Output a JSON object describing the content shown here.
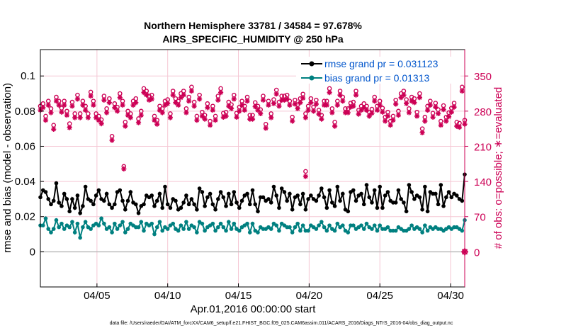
{
  "chart_data": {
    "type": "line",
    "title_line1": "Northern Hemisphere 33781 / 34584 = 97.678%",
    "title_line2": "AIRS_SPECIFIC_HUMIDITY @ 250 hPa",
    "xlabel": "Apr.01,2016 00:00:00 start",
    "ylabel_left": "rmse and bias (model - observation)",
    "ylabel_right": "# of obs: o=possible; ∗=evaluated",
    "footer": "data file: /Users/raeder/DAI/ATM_forcXX/CAM6_setup/f.e21.FHIST_BGC.f09_025.CAM6assim.011/ACARS_2016/Diags_NTrS_2016-04/obs_diag_output.nc",
    "x_ticks": [
      "04/05",
      "04/10",
      "04/15",
      "04/20",
      "04/25",
      "04/30"
    ],
    "x_tick_days": [
      5,
      10,
      15,
      20,
      25,
      30
    ],
    "xlim": [
      1,
      31
    ],
    "ylim_left": [
      -0.02,
      0.115
    ],
    "y_ticks_left": [
      "0",
      "0.02",
      "0.04",
      "0.06",
      "0.08",
      "0.1"
    ],
    "y_tick_values_left": [
      0,
      0.02,
      0.04,
      0.06,
      0.08,
      0.1
    ],
    "ylim_right": [
      -70,
      402.5
    ],
    "y_ticks_right": [
      "0",
      "70",
      "140",
      "210",
      "280",
      "350"
    ],
    "y_tick_values_right": [
      0,
      70,
      140,
      210,
      280,
      350
    ],
    "colors": {
      "rmse": "#000000",
      "bias": "#008080",
      "obs": "#cc0055",
      "legend_text": "#0055cc",
      "grid": "#f5c7d4",
      "zero": "#bbbbbb"
    },
    "series": [
      {
        "name": "rmse grand pr = 0.031123",
        "values": [
          0.031,
          0.035,
          0.034,
          0.03,
          0.027,
          0.029,
          0.039,
          0.028,
          0.026,
          0.033,
          0.03,
          0.023,
          0.03,
          0.025,
          0.032,
          0.022,
          0.026,
          0.037,
          0.03,
          0.029,
          0.027,
          0.032,
          0.035,
          0.03,
          0.029,
          0.033,
          0.027,
          0.025,
          0.027,
          0.034,
          0.035,
          0.029,
          0.024,
          0.029,
          0.034,
          0.028,
          0.027,
          0.022,
          0.026,
          0.027,
          0.032,
          0.031,
          0.032,
          0.026,
          0.029,
          0.033,
          0.025,
          0.037,
          0.027,
          0.025,
          0.03,
          0.029,
          0.024,
          0.025,
          0.028,
          0.032,
          0.027,
          0.03,
          0.027,
          0.024,
          0.036,
          0.034,
          0.026,
          0.031,
          0.033,
          0.027,
          0.024,
          0.03,
          0.034,
          0.031,
          0.026,
          0.033,
          0.027,
          0.034,
          0.028,
          0.025,
          0.029,
          0.032,
          0.033,
          0.027,
          0.035,
          0.027,
          0.023,
          0.031,
          0.031,
          0.029,
          0.03,
          0.028,
          0.037,
          0.032,
          0.025,
          0.036,
          0.034,
          0.029,
          0.033,
          0.024,
          0.031,
          0.032,
          0.027,
          0.033,
          0.024,
          0.03,
          0.032,
          0.03,
          0.029,
          0.032,
          0.036,
          0.031,
          0.025,
          0.035,
          0.028,
          0.026,
          0.037,
          0.029,
          0.033,
          0.024,
          0.023,
          0.034,
          0.035,
          0.029,
          0.032,
          0.033,
          0.027,
          0.038,
          0.031,
          0.028,
          0.035,
          0.025,
          0.037,
          0.025,
          0.032,
          0.034,
          0.029,
          0.028,
          0.028,
          0.035,
          0.03,
          0.028,
          0.023,
          0.038,
          0.034,
          0.03,
          0.032,
          0.031,
          0.024,
          0.037,
          0.023,
          0.034,
          0.033,
          0.033,
          0.027,
          0.038,
          0.026,
          0.031,
          0.034,
          0.031,
          0.033,
          0.032,
          0.03,
          0.029,
          0.044
        ]
      },
      {
        "name": "bias grand pr = 0.01313",
        "values": [
          0.015,
          0.015,
          0.019,
          0.013,
          0.011,
          0.013,
          0.018,
          0.014,
          0.016,
          0.013,
          0.015,
          0.014,
          0.017,
          0.011,
          0.016,
          0.008,
          0.014,
          0.017,
          0.014,
          0.013,
          0.015,
          0.016,
          0.015,
          0.019,
          0.016,
          0.013,
          0.014,
          0.011,
          0.016,
          0.013,
          0.015,
          0.017,
          0.011,
          0.013,
          0.016,
          0.015,
          0.014,
          0.014,
          0.017,
          0.012,
          0.016,
          0.015,
          0.016,
          0.01,
          0.014,
          0.017,
          0.012,
          0.014,
          0.013,
          0.015,
          0.016,
          0.013,
          0.012,
          0.015,
          0.013,
          0.017,
          0.013,
          0.015,
          0.014,
          0.011,
          0.017,
          0.016,
          0.012,
          0.014,
          0.015,
          0.016,
          0.012,
          0.014,
          0.016,
          0.014,
          0.012,
          0.017,
          0.013,
          0.016,
          0.013,
          0.012,
          0.014,
          0.015,
          0.016,
          0.011,
          0.016,
          0.012,
          0.011,
          0.014,
          0.013,
          0.013,
          0.014,
          0.013,
          0.016,
          0.015,
          0.012,
          0.016,
          0.015,
          0.014,
          0.014,
          0.011,
          0.014,
          0.016,
          0.012,
          0.015,
          0.012,
          0.012,
          0.015,
          0.014,
          0.013,
          0.015,
          0.017,
          0.014,
          0.012,
          0.015,
          0.013,
          0.012,
          0.016,
          0.014,
          0.015,
          0.012,
          0.011,
          0.015,
          0.015,
          0.013,
          0.014,
          0.015,
          0.013,
          0.016,
          0.014,
          0.013,
          0.015,
          0.012,
          0.015,
          0.013,
          0.013,
          0.014,
          0.012,
          0.012,
          0.012,
          0.014,
          0.013,
          0.012,
          0.012,
          0.013,
          0.015,
          0.013,
          0.014,
          0.013,
          0.011,
          0.015,
          0.012,
          0.014,
          0.013,
          0.014,
          0.013,
          0.013,
          0.012,
          0.013,
          0.014,
          0.013,
          0.014,
          0.014,
          0.013,
          0.012,
          0.018
        ]
      },
      {
        "name": "possible",
        "values": [
          290,
          295,
          270,
          300,
          285,
          252,
          308,
          300,
          286,
          300,
          280,
          255,
          298,
          275,
          312,
          275,
          300,
          290,
          275,
          318,
          300,
          275,
          270,
          263,
          310,
          285,
          305,
          230,
          295,
          288,
          315,
          300,
          258,
          280,
          275,
          300,
          305,
          265,
          280,
          325,
          320,
          310,
          312,
          270,
          262,
          290,
          285,
          300,
          303,
          275,
          320,
          305,
          300,
          315,
          320,
          285,
          308,
          328,
          298,
          270,
          312,
          278,
          272,
          295,
          260,
          290,
          270,
          310,
          325,
          276,
          278,
          298,
          293,
          312,
          276,
          288,
          300,
          290,
          308,
          272,
          272,
          297,
          290,
          283,
          310,
          254,
          300,
          275,
          303,
          322,
          298,
          310,
          310,
          312,
          300,
          268,
          302,
          293,
          305,
          314,
          275,
          290,
          305,
          288,
          302,
          282,
          272,
          300,
          300,
          325,
          285,
          258,
          300,
          320,
          308,
          285,
          285,
          296,
          298,
          320,
          282,
          290,
          295,
          290,
          278,
          284,
          308,
          290,
          300,
          286,
          268,
          278,
          260,
          270,
          302,
          280,
          315,
          320,
          303,
          285,
          308,
          305,
          278,
          315,
          245,
          268,
          290,
          300,
          276,
          296,
          283,
          260,
          291,
          268,
          277,
          286,
          296,
          258,
          256,
          328,
          262
        ],
        "note": "shown as circles (o)"
      },
      {
        "name": "evaluated",
        "values": [
          282,
          287,
          262,
          292,
          277,
          244,
          300,
          292,
          278,
          292,
          272,
          247,
          290,
          267,
          304,
          267,
          292,
          282,
          267,
          310,
          292,
          267,
          262,
          255,
          302,
          277,
          297,
          222,
          287,
          280,
          307,
          292,
          250,
          272,
          267,
          292,
          297,
          257,
          272,
          317,
          312,
          302,
          304,
          262,
          254,
          282,
          277,
          292,
          295,
          267,
          312,
          297,
          292,
          307,
          312,
          277,
          300,
          320,
          290,
          262,
          304,
          270,
          264,
          287,
          252,
          282,
          262,
          302,
          317,
          268,
          270,
          290,
          285,
          304,
          268,
          280,
          292,
          282,
          300,
          264,
          264,
          289,
          282,
          275,
          302,
          246,
          292,
          267,
          295,
          314,
          290,
          302,
          302,
          304,
          292,
          260,
          294,
          285,
          297,
          306,
          267,
          282,
          297,
          280,
          294,
          274,
          264,
          292,
          292,
          317,
          277,
          250,
          292,
          312,
          300,
          277,
          277,
          288,
          290,
          312,
          274,
          282,
          287,
          282,
          270,
          276,
          300,
          282,
          292,
          278,
          260,
          270,
          252,
          262,
          294,
          272,
          307,
          312,
          295,
          277,
          300,
          297,
          270,
          307,
          237,
          260,
          282,
          292,
          268,
          288,
          275,
          252,
          283,
          260,
          269,
          278,
          288,
          250,
          248,
          320,
          254
        ],
        "note": "shown as asterisks (*)"
      }
    ],
    "outliers": [
      {
        "series": "possible",
        "day": 6.9,
        "value": 170
      },
      {
        "series": "evaluated",
        "day": 6.9,
        "value": 165
      },
      {
        "series": "possible",
        "day": 19.75,
        "value": 160
      },
      {
        "series": "evaluated",
        "day": 19.75,
        "value": 150
      }
    ],
    "end_markers": [
      {
        "series": "possible",
        "day": 31,
        "value": 0
      },
      {
        "series": "evaluated",
        "day": 31,
        "value": 0
      }
    ],
    "legend": [
      {
        "label": "rmse grand pr = 0.031123",
        "series": "rmse"
      },
      {
        "label": "bias grand pr = 0.01313",
        "series": "bias"
      }
    ],
    "legend_position": "top-right",
    "grid": true
  }
}
